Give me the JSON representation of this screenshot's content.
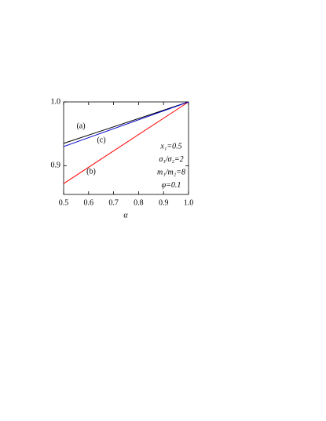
{
  "chart_data": {
    "type": "line",
    "x": [
      0.5,
      1.0
    ],
    "series": [
      {
        "name": "(a)",
        "color": "#000000",
        "values": [
          0.935,
          1.0
        ]
      },
      {
        "name": "(b)",
        "color": "#ff0000",
        "values": [
          0.872,
          1.0
        ]
      },
      {
        "name": "(c)",
        "color": "#0000cc",
        "values": [
          0.93,
          1.0
        ]
      }
    ],
    "xlabel": "α",
    "xlim": [
      0.5,
      1.0
    ],
    "xticks": [
      0.5,
      0.6,
      0.7,
      0.8,
      0.9,
      {
        "value": 1.0,
        "label": "1.0"
      }
    ],
    "ylim": [
      0.855,
      1.0
    ],
    "yticks": [
      0.9,
      {
        "value": 1.0,
        "label": "1.0"
      }
    ],
    "annotations": [
      "x₁=0.5",
      "σ₁/σ₂=2",
      "m₁/m₂=8",
      "φ=0.1"
    ]
  }
}
